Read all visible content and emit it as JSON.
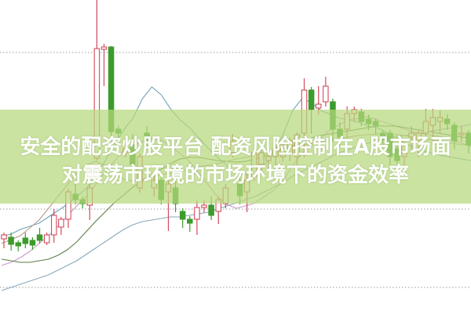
{
  "title": {
    "line1": "安全的配资炒股平台 配资风险控制在A股市场面",
    "line2": "对震荡市环境的市场环境下的资金效率"
  },
  "colors": {
    "up": "#d24b5c",
    "down": "#3c9b2c",
    "banner": "#b7d87d",
    "grid": "#9a9a9a",
    "ma": [
      "#6fa0b8",
      "#c89ac8",
      "#5c7d46",
      "#8aa7b8",
      "#b59a86"
    ]
  },
  "chart_data": {
    "type": "candlestick",
    "title": "",
    "xlabel": "",
    "ylabel": "",
    "ylim": [
      0,
      401
    ],
    "grid": {
      "horizontal": true,
      "style": "dotted",
      "levels": [
        334,
        134,
        34
      ]
    },
    "candles_ohlc": [
      [
        96,
        101,
        104,
        84
      ],
      [
        98,
        89,
        104,
        81
      ],
      [
        91,
        87,
        94,
        80
      ],
      [
        97,
        90,
        104,
        84
      ],
      [
        94,
        88,
        98,
        82
      ],
      [
        101,
        94,
        110,
        90
      ],
      [
        91,
        101,
        104,
        88
      ],
      [
        101,
        126,
        134,
        91
      ],
      [
        111,
        121,
        124,
        101
      ],
      [
        121,
        156,
        160,
        110
      ],
      [
        153,
        146,
        166,
        140
      ],
      [
        146,
        141,
        150,
        135
      ],
      [
        139,
        161,
        166,
        120
      ],
      [
        199,
        339,
        401,
        196
      ],
      [
        338,
        341,
        345,
        291
      ],
      [
        341,
        233,
        342,
        220
      ],
      [
        236,
        231,
        240,
        220
      ],
      [
        206,
        211,
        220,
        200
      ],
      [
        216,
        191,
        230,
        185
      ],
      [
        161,
        201,
        205,
        155
      ],
      [
        231,
        221,
        240,
        210
      ],
      [
        161,
        171,
        180,
        150
      ],
      [
        171,
        146,
        180,
        140
      ],
      [
        156,
        166,
        185,
        106
      ],
      [
        161,
        141,
        170,
        130
      ],
      [
        131,
        121,
        135,
        110
      ],
      [
        121,
        116,
        125,
        105
      ],
      [
        121,
        136,
        145,
        101
      ],
      [
        136,
        139,
        145,
        130
      ],
      [
        139,
        126,
        150,
        120
      ],
      [
        131,
        146,
        150,
        115
      ],
      [
        141,
        161,
        166,
        135
      ],
      [
        206,
        221,
        230,
        200
      ],
      [
        166,
        151,
        180,
        140
      ],
      [
        156,
        171,
        180,
        130
      ],
      [
        176,
        206,
        212,
        170
      ],
      [
        191,
        206,
        210,
        180
      ],
      [
        196,
        201,
        205,
        185
      ],
      [
        201,
        211,
        218,
        190
      ],
      [
        201,
        216,
        222,
        195
      ],
      [
        206,
        221,
        225,
        195
      ],
      [
        201,
        229,
        232,
        190
      ],
      [
        231,
        286,
        301,
        200
      ],
      [
        286,
        261,
        290,
        230
      ],
      [
        263,
        268,
        291,
        255
      ],
      [
        271,
        291,
        303,
        265
      ],
      [
        271,
        236,
        275,
        220
      ],
      [
        236,
        226,
        245,
        215
      ],
      [
        236,
        256,
        265,
        225
      ],
      [
        256,
        261,
        265,
        245
      ],
      [
        258,
        246,
        262,
        240
      ],
      [
        249,
        243,
        255,
        235
      ],
      [
        246,
        241,
        250,
        230
      ],
      [
        231,
        223,
        235,
        215
      ],
      [
        231,
        201,
        235,
        190
      ],
      [
        211,
        196,
        215,
        185
      ],
      [
        201,
        216,
        220,
        190
      ],
      [
        226,
        231,
        240,
        205
      ],
      [
        221,
        231,
        235,
        200
      ],
      [
        231,
        246,
        262,
        225
      ],
      [
        241,
        251,
        262,
        215
      ],
      [
        246,
        251,
        260,
        230
      ],
      [
        249,
        243,
        255,
        235
      ],
      [
        241,
        221,
        245,
        210
      ],
      [
        229,
        231,
        240,
        220
      ],
      [
        231,
        216,
        235,
        205
      ]
    ],
    "series": [
      {
        "values": [
          99,
          102,
          108,
          112,
          116,
          124,
          132,
          140,
          150,
          160,
          175,
          195,
          215,
          235,
          250,
          275,
          290,
          280,
          262,
          248,
          238,
          225,
          212,
          200,
          190,
          180,
          178,
          182,
          190,
          205,
          230,
          260,
          275,
          270,
          260,
          255,
          250,
          248,
          245,
          240,
          238,
          232,
          225,
          218,
          212,
          208,
          205,
          202,
          200,
          198,
          196
        ]
      },
      {
        "values": [
          62,
          66,
          72,
          80,
          90,
          100,
          112,
          125,
          138,
          150,
          165,
          180,
          195,
          208,
          215,
          220,
          225,
          222,
          215,
          205,
          195,
          180,
          165,
          150,
          140,
          135,
          138,
          142,
          150,
          158,
          170,
          190,
          205,
          215,
          225,
          235,
          242,
          248,
          250,
          252,
          248,
          244,
          240,
          236,
          232,
          230,
          228,
          226,
          222,
          218,
          214
        ]
      },
      {
        "values": [
          70,
          68,
          66,
          66,
          68,
          70,
          75,
          82,
          92,
          105,
          118,
          130,
          142,
          152,
          162,
          170,
          178,
          185,
          192,
          198,
          200,
          200,
          198,
          196,
          195,
          194,
          195,
          198,
          202,
          206,
          210,
          215,
          220,
          225,
          228,
          230,
          232,
          234,
          236,
          238,
          240,
          240,
          240,
          238,
          236,
          234,
          232,
          230,
          228,
          226,
          224
        ]
      },
      {
        "values": [
          30,
          34,
          38,
          42,
          46,
          50,
          56,
          62,
          68,
          76,
          84,
          92,
          100,
          108,
          114,
          118,
          120,
          122,
          124,
          124,
          126,
          128,
          130,
          134,
          138,
          142,
          146,
          150,
          156,
          162,
          168,
          176,
          182,
          188,
          194,
          200,
          206,
          210,
          214,
          218,
          222,
          224,
          226,
          228,
          230,
          232,
          234,
          236,
          238,
          240,
          242
        ]
      },
      {
        "values": [
          90,
          95,
          100,
          110,
          120,
          135,
          150,
          165,
          180,
          190,
          195,
          190,
          180,
          172,
          170,
          172,
          175,
          178,
          180,
          182,
          185,
          188,
          190,
          192,
          195,
          198,
          200,
          202,
          205,
          208,
          210,
          212,
          215,
          218,
          220,
          222,
          224,
          226,
          228,
          229,
          230,
          230,
          229,
          228,
          226,
          224,
          222,
          220,
          218,
          216,
          215
        ]
      }
    ]
  }
}
